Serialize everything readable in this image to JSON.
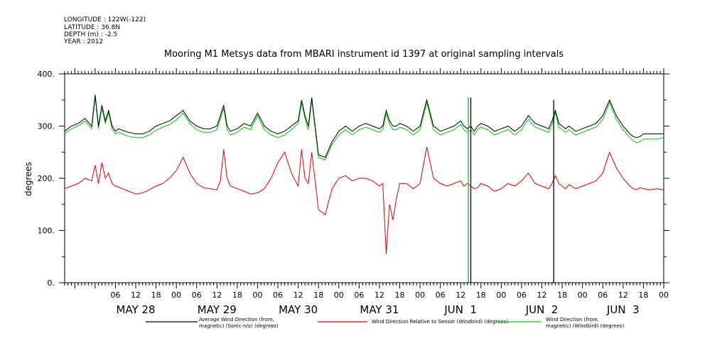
{
  "meta": [
    "LONGITUDE : 122W(-122)",
    "LATITUDE : 36.8N",
    "DEPTH (m) : -2.5",
    "YEAR : 2012"
  ],
  "chart_data": {
    "type": "line",
    "title": "Mooring M1 Metsys data from MBARI instrument id 1397 at original sampling intervals",
    "ylabel": "degrees",
    "xlabel": "",
    "ylim": [
      0,
      400
    ],
    "yticks": [
      0,
      100,
      200,
      300,
      400
    ],
    "ytick_labels": [
      "0.",
      "100.",
      "200.",
      "300.",
      "400."
    ],
    "xlim_hours": [
      -9,
      168
    ],
    "x_unit": "hours from 2012-05-28 00:00",
    "hour_ticks": [
      "06",
      "12",
      "18",
      "00",
      "06",
      "12",
      "18",
      "00",
      "06",
      "12",
      "18",
      "00",
      "06",
      "12",
      "18",
      "00",
      "06",
      "12",
      "18",
      "00",
      "06",
      "12",
      "18",
      "00",
      "06",
      "12",
      "18",
      "00"
    ],
    "day_labels": [
      "MAY 28",
      "MAY 29",
      "MAY 30",
      "MAY 31",
      "JUN  1",
      "JUN  2",
      "JUN  3"
    ],
    "grid": false,
    "legend_position": "bottom",
    "series": [
      {
        "name": "Average Wind Direction (from, magnetic) (Sonic-n/a) (degrees)",
        "legend_lines": [
          "Average Wind Direction (from,",
          "magnetic) (Sonic-n/a) (degrees)"
        ],
        "color": "#000000",
        "x": [
          -9,
          -7,
          -5,
          -3,
          -1,
          0,
          1,
          2,
          3,
          4,
          5,
          6,
          7,
          8,
          10,
          12,
          14,
          16,
          18,
          20,
          22,
          24,
          26,
          28,
          30,
          32,
          34,
          36,
          37,
          38,
          39,
          40,
          42,
          44,
          46,
          48,
          50,
          52,
          54,
          56,
          58,
          60,
          61,
          62,
          63,
          64,
          66,
          68,
          70,
          72,
          74,
          76,
          78,
          80,
          82,
          84,
          85,
          86,
          87,
          88,
          89,
          90,
          92,
          94,
          96,
          98,
          100,
          102,
          104,
          106,
          108,
          109,
          110,
          111,
          112,
          113,
          114,
          116,
          118,
          120,
          122,
          124,
          126,
          128,
          130,
          132,
          134,
          135,
          136,
          137,
          138,
          139,
          140,
          142,
          144,
          146,
          148,
          150,
          152,
          154,
          156,
          158,
          159,
          160,
          161,
          162,
          164,
          166,
          168
        ],
        "y": [
          290,
          300,
          305,
          315,
          300,
          360,
          300,
          340,
          310,
          330,
          300,
          290,
          295,
          292,
          288,
          285,
          285,
          290,
          300,
          305,
          310,
          320,
          330,
          310,
          300,
          295,
          295,
          300,
          320,
          340,
          300,
          290,
          295,
          305,
          300,
          325,
          300,
          290,
          285,
          290,
          300,
          310,
          350,
          320,
          300,
          355,
          245,
          240,
          270,
          290,
          300,
          290,
          300,
          305,
          300,
          295,
          300,
          330,
          310,
          300,
          300,
          305,
          300,
          290,
          300,
          350,
          300,
          290,
          295,
          300,
          310,
          300,
          295,
          300,
          290,
          300,
          305,
          300,
          290,
          295,
          300,
          290,
          300,
          320,
          305,
          300,
          295,
          310,
          330,
          305,
          300,
          295,
          300,
          290,
          295,
          300,
          305,
          320,
          350,
          320,
          300,
          285,
          280,
          278,
          280,
          285,
          285,
          285,
          285
        ]
      },
      {
        "name": "Wind Direction Relative to Sensor (Windbird) (degrees)",
        "legend_lines": [
          "Wind Direction Relative to Sensor (Windbird) (degrees)"
        ],
        "color": "#dd0000",
        "x": [
          -9,
          -7,
          -5,
          -3,
          -1,
          0,
          1,
          2,
          3,
          4,
          5,
          6,
          7,
          8,
          10,
          12,
          14,
          16,
          18,
          20,
          22,
          24,
          26,
          28,
          30,
          32,
          34,
          36,
          37,
          38,
          39,
          40,
          42,
          44,
          46,
          48,
          50,
          52,
          54,
          56,
          58,
          60,
          61,
          62,
          63,
          64,
          66,
          68,
          70,
          72,
          74,
          76,
          78,
          80,
          82,
          84,
          85,
          86,
          87,
          88,
          89,
          90,
          92,
          94,
          96,
          98,
          100,
          102,
          104,
          106,
          108,
          109,
          110,
          111,
          112,
          113,
          114,
          116,
          118,
          120,
          122,
          124,
          126,
          128,
          130,
          132,
          134,
          135,
          136,
          137,
          138,
          139,
          140,
          142,
          144,
          146,
          148,
          150,
          152,
          154,
          156,
          158,
          159,
          160,
          161,
          162,
          164,
          166,
          168
        ],
        "y": [
          180,
          185,
          190,
          200,
          195,
          225,
          190,
          230,
          200,
          210,
          190,
          185,
          183,
          180,
          175,
          170,
          172,
          178,
          185,
          190,
          200,
          215,
          240,
          210,
          190,
          182,
          180,
          178,
          195,
          255,
          200,
          185,
          180,
          175,
          170,
          172,
          180,
          200,
          230,
          250,
          210,
          185,
          255,
          200,
          190,
          250,
          140,
          130,
          180,
          200,
          205,
          195,
          200,
          200,
          195,
          185,
          190,
          55,
          150,
          120,
          160,
          190,
          190,
          180,
          190,
          260,
          200,
          190,
          185,
          190,
          195,
          185,
          190,
          185,
          180,
          182,
          190,
          185,
          175,
          180,
          190,
          185,
          195,
          210,
          190,
          185,
          180,
          190,
          205,
          190,
          185,
          180,
          188,
          180,
          185,
          190,
          195,
          210,
          250,
          220,
          200,
          185,
          180,
          178,
          182,
          180,
          178,
          180,
          178
        ]
      },
      {
        "name": "Wind Direction (from, magnetic) (Windbird) (degrees)",
        "legend_lines": [
          "Wind Direction (from,",
          "magnetic) (Windbird) (degrees)"
        ],
        "color": "#00cc00",
        "x": [
          -9,
          -7,
          -5,
          -3,
          -1,
          0,
          1,
          2,
          3,
          4,
          5,
          6,
          7,
          8,
          10,
          12,
          14,
          16,
          18,
          20,
          22,
          24,
          26,
          28,
          30,
          32,
          34,
          36,
          37,
          38,
          39,
          40,
          42,
          44,
          46,
          48,
          50,
          52,
          54,
          56,
          58,
          60,
          61,
          62,
          63,
          64,
          66,
          68,
          70,
          72,
          74,
          76,
          78,
          80,
          82,
          84,
          85,
          86,
          87,
          88,
          89,
          90,
          92,
          94,
          96,
          98,
          100,
          102,
          104,
          106,
          108,
          109,
          110,
          111,
          112,
          113,
          114,
          116,
          118,
          120,
          122,
          124,
          126,
          128,
          130,
          132,
          134,
          135,
          136,
          137,
          138,
          139,
          140,
          142,
          144,
          146,
          148,
          150,
          152,
          154,
          156,
          158,
          159,
          160,
          161,
          162,
          164,
          166,
          168
        ],
        "y": [
          285,
          295,
          300,
          310,
          295,
          355,
          295,
          335,
          305,
          325,
          295,
          285,
          288,
          285,
          280,
          278,
          278,
          283,
          292,
          298,
          303,
          312,
          325,
          305,
          293,
          288,
          288,
          293,
          313,
          335,
          293,
          283,
          288,
          298,
          293,
          320,
          293,
          283,
          278,
          283,
          293,
          305,
          345,
          315,
          293,
          350,
          240,
          235,
          265,
          283,
          293,
          283,
          293,
          298,
          293,
          288,
          293,
          325,
          303,
          293,
          293,
          298,
          293,
          283,
          293,
          345,
          293,
          283,
          288,
          293,
          303,
          293,
          288,
          293,
          283,
          293,
          298,
          293,
          283,
          288,
          293,
          283,
          293,
          313,
          298,
          293,
          288,
          303,
          325,
          298,
          293,
          288,
          293,
          283,
          288,
          293,
          298,
          313,
          345,
          313,
          293,
          278,
          272,
          268,
          270,
          275,
          275,
          275,
          278
        ]
      }
    ],
    "dropouts": [
      {
        "series": 2,
        "x": 110.3,
        "from": 355,
        "to": 0
      },
      {
        "series": 0,
        "x": 111.0,
        "from": 355,
        "to": 0
      },
      {
        "series": 0,
        "x": 135.5,
        "from": 350,
        "to": 0
      }
    ]
  }
}
